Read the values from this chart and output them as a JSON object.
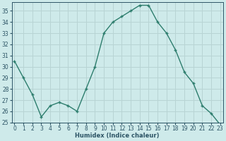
{
  "x": [
    0,
    1,
    2,
    3,
    4,
    5,
    6,
    7,
    8,
    9,
    10,
    11,
    12,
    13,
    14,
    15,
    16,
    17,
    18,
    19,
    20,
    21,
    22,
    23
  ],
  "y": [
    30.5,
    29.0,
    27.5,
    25.5,
    26.5,
    26.8,
    26.5,
    26.0,
    28.0,
    30.0,
    33.0,
    34.0,
    34.5,
    35.0,
    35.5,
    35.5,
    34.0,
    33.0,
    31.5,
    29.5,
    28.5,
    26.5,
    25.8,
    24.8
  ],
  "xlabel": "Humidex (Indice chaleur)",
  "line_color": "#2d7d6d",
  "marker_color": "#2d7d6d",
  "bg_color": "#ceeaea",
  "grid_color": "#b8d4d4",
  "tick_label_color": "#2d5566",
  "ylim": [
    25,
    35.8
  ],
  "xlim": [
    -0.3,
    23.3
  ],
  "yticks": [
    25,
    26,
    27,
    28,
    29,
    30,
    31,
    32,
    33,
    34,
    35
  ],
  "xticks": [
    0,
    1,
    2,
    3,
    4,
    5,
    6,
    7,
    8,
    9,
    10,
    11,
    12,
    13,
    14,
    15,
    16,
    17,
    18,
    19,
    20,
    21,
    22,
    23
  ],
  "xlabel_fontsize": 6.0,
  "tick_fontsize": 5.5
}
